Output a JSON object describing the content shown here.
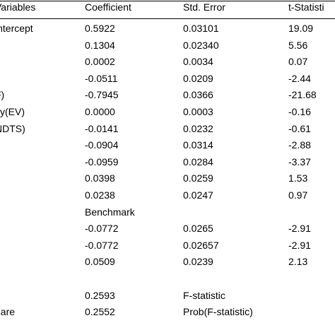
{
  "table": {
    "headers": [
      "Variables",
      "Coefficient",
      "Std. Error",
      "t-Statisti"
    ],
    "rows": [
      [
        "intercept",
        "0.5922",
        "0.03101",
        "19.09"
      ],
      [
        ")",
        "0.1304",
        "0.02340",
        "5.56"
      ],
      [
        "",
        "0.0002",
        "0.0034",
        "0.07"
      ],
      [
        "",
        "-0.0511",
        "0.0209",
        "-2.44"
      ],
      [
        "F)",
        "-0.7945",
        "0.0366",
        "-21.68"
      ],
      [
        "ity(EV)",
        "0.0000",
        "0.0003",
        "-0.16"
      ],
      [
        "NDTS)",
        "-0.0141",
        "0.0232",
        "-0.61"
      ],
      [
        "",
        "-0.0904",
        "0.0314",
        "-2.88"
      ],
      [
        "",
        "-0.0959",
        "0.0284",
        "-3.37"
      ],
      [
        "",
        "0.0398",
        "0.0259",
        "1.53"
      ],
      [
        "",
        "0.0238",
        "0.0247",
        "0.97"
      ],
      [
        "",
        "Benchmark",
        "",
        ""
      ],
      [
        "",
        "-0.0772",
        "0.0265",
        "-2.91"
      ],
      [
        "",
        "-0.0772",
        "0.02657",
        "-2.91"
      ],
      [
        "",
        "0.0509",
        "0.0239",
        "2.13"
      ],
      [
        "",
        "",
        "",
        ""
      ],
      [
        "",
        "0.2593",
        "F-statistic",
        ""
      ],
      [
        "uare",
        "0.2552",
        "Prob(F-statistic)",
        ""
      ]
    ]
  }
}
